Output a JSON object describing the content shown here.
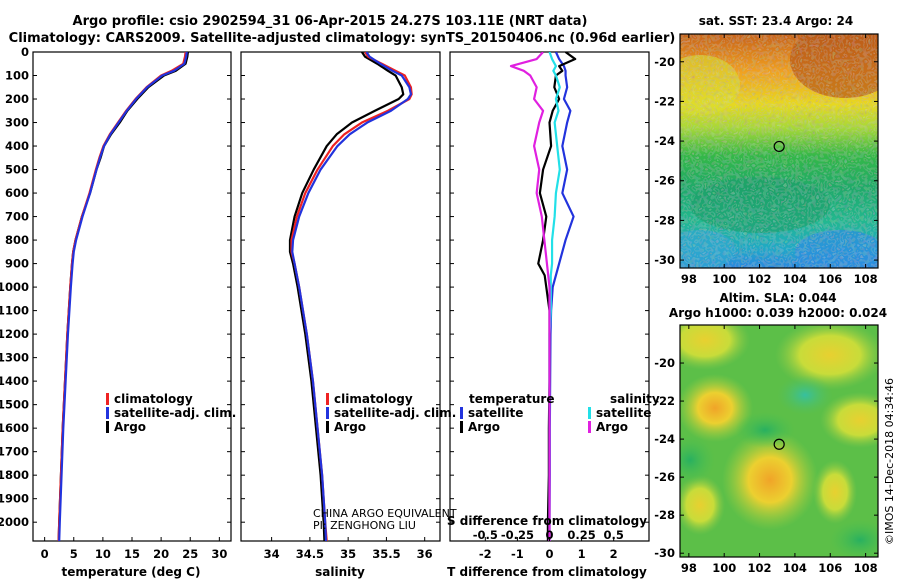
{
  "title_line1": "Argo profile: csio 2902594_31 06-Apr-2015 24.27S 103.11E (NRT data)",
  "title_line2": "Climatology: CARS2009. Satellite-adjusted climatology: synTS_20150406.nc (0.96d earlier)",
  "credit": "CHINA ARGO EQUIVALENT",
  "pi": "PI: ZENGHONG LIU",
  "timestamp": "©IMOS 14-Dec-2018 04:34:46",
  "colors": {
    "red": "#ee2222",
    "blue": "#2233dd",
    "black": "#000000",
    "cyan": "#22e0e8",
    "magenta": "#e020e0"
  },
  "chart_data": [
    {
      "type": "line",
      "id": "temperature",
      "xlabel": "temperature (deg C)",
      "ylabel": "",
      "xlim": [
        -2,
        32
      ],
      "ylim": [
        2080,
        0
      ],
      "xticks": [
        0,
        5,
        10,
        15,
        20,
        25,
        30
      ],
      "yticks": [
        0,
        100,
        200,
        300,
        400,
        500,
        600,
        700,
        800,
        900,
        1000,
        1100,
        1200,
        1300,
        1400,
        1500,
        1600,
        1700,
        1800,
        1900,
        2000
      ],
      "legend": [
        "climatology",
        "satellite-adj. clim.",
        "Argo"
      ],
      "depth": [
        0,
        20,
        50,
        80,
        100,
        150,
        200,
        250,
        300,
        350,
        400,
        450,
        500,
        600,
        700,
        800,
        850,
        900,
        1000,
        1200,
        1400,
        1600,
        1800,
        2000,
        2080
      ],
      "series": [
        {
          "name": "Argo",
          "color": "black",
          "values": [
            24.6,
            24.5,
            24.2,
            22.5,
            20.5,
            17.8,
            15.9,
            14.2,
            12.9,
            11.4,
            10.2,
            9.6,
            8.9,
            7.8,
            6.4,
            5.3,
            4.9,
            4.7,
            4.4,
            3.9,
            3.5,
            3.1,
            2.8,
            2.5,
            2.4
          ]
        },
        {
          "name": "climatology",
          "color": "red",
          "values": [
            24.2,
            24.1,
            23.8,
            21.8,
            20.0,
            17.5,
            15.6,
            14.0,
            12.6,
            11.2,
            10.1,
            9.4,
            8.8,
            7.7,
            6.4,
            5.3,
            4.9,
            4.7,
            4.4,
            3.9,
            3.5,
            3.1,
            2.8,
            2.5,
            2.4
          ]
        },
        {
          "name": "satellite-adj. clim.",
          "color": "blue",
          "values": [
            24.4,
            24.3,
            24.0,
            22.2,
            20.2,
            17.6,
            15.7,
            14.1,
            12.7,
            11.3,
            10.2,
            9.5,
            8.9,
            7.8,
            6.5,
            5.4,
            5.0,
            4.8,
            4.5,
            4.0,
            3.6,
            3.2,
            2.9,
            2.6,
            2.5
          ]
        }
      ]
    },
    {
      "type": "line",
      "id": "salinity",
      "xlabel": "salinity",
      "ylabel": "",
      "xlim": [
        33.6,
        36.2
      ],
      "ylim": [
        2080,
        0
      ],
      "xticks": [
        34,
        34.5,
        35,
        35.5,
        36
      ],
      "xtick_labels": [
        "34",
        "34.5",
        "35",
        "35.5",
        "36"
      ],
      "legend": [
        "climatology",
        "satellite-adj. clim.",
        "Argo"
      ],
      "depth": [
        0,
        20,
        50,
        80,
        100,
        150,
        180,
        200,
        250,
        300,
        350,
        400,
        500,
        600,
        700,
        800,
        850,
        900,
        1000,
        1200,
        1400,
        1600,
        1800,
        2000,
        2080
      ],
      "series": [
        {
          "name": "Argo",
          "color": "black",
          "values": [
            35.18,
            35.22,
            35.38,
            35.52,
            35.62,
            35.7,
            35.72,
            35.66,
            35.35,
            35.05,
            34.85,
            34.72,
            34.55,
            34.4,
            34.3,
            34.24,
            34.24,
            34.28,
            34.34,
            34.44,
            34.52,
            34.58,
            34.64,
            34.68,
            34.69
          ]
        },
        {
          "name": "climatology",
          "color": "red",
          "values": [
            35.22,
            35.26,
            35.44,
            35.62,
            35.74,
            35.82,
            35.83,
            35.8,
            35.52,
            35.18,
            34.95,
            34.8,
            34.6,
            34.44,
            34.33,
            34.26,
            34.26,
            34.3,
            34.36,
            34.46,
            34.54,
            34.6,
            34.66,
            34.7,
            34.72
          ]
        },
        {
          "name": "satellite-adj. clim.",
          "color": "blue",
          "values": [
            35.24,
            35.28,
            35.42,
            35.58,
            35.7,
            35.8,
            35.82,
            35.78,
            35.56,
            35.25,
            35.02,
            34.86,
            34.64,
            34.48,
            34.36,
            34.28,
            34.27,
            34.3,
            34.36,
            34.46,
            34.54,
            34.6,
            34.66,
            34.7,
            34.71
          ]
        }
      ]
    },
    {
      "type": "line",
      "id": "differences",
      "xlabel": "T difference from climatology",
      "xlabel_top": "S difference from climatology",
      "xlim": [
        -3.1,
        3.1
      ],
      "ylim": [
        2080,
        0
      ],
      "xticks": [
        -2,
        -1,
        0,
        1,
        2
      ],
      "xtick_labels": [
        "-2",
        "-1",
        "0",
        "1",
        "2"
      ],
      "s_ticks": [
        -0.5,
        -0.25,
        0,
        0.25,
        0.5
      ],
      "s_tick_labels": [
        "-0.5",
        "-0.25",
        "0",
        "0.25",
        "0.5"
      ],
      "s_per_t": 0.25,
      "legend_left_header": "temperature",
      "legend_right_header": "salinity",
      "legend_left": [
        "satellite",
        "Argo"
      ],
      "legend_right": [
        "satellite",
        "Argo"
      ],
      "depth": [
        0,
        30,
        60,
        80,
        100,
        150,
        200,
        250,
        300,
        400,
        500,
        600,
        700,
        800,
        900,
        950,
        1000,
        1100,
        1200,
        1400,
        1600,
        1800,
        2000,
        2080
      ],
      "series": [
        {
          "name": "T satellite",
          "color": "blue",
          "values": [
            0.2,
            0.3,
            0.45,
            0.5,
            0.5,
            0.55,
            0.45,
            0.65,
            0.55,
            0.4,
            0.55,
            0.4,
            0.75,
            0.5,
            0.3,
            0.2,
            0.1,
            0.05,
            0.03,
            0.02,
            0.01,
            0.01,
            0.0,
            0.0
          ]
        },
        {
          "name": "T Argo",
          "color": "black",
          "values": [
            0.5,
            0.8,
            0.3,
            0.4,
            0.2,
            0.15,
            0.3,
            0.1,
            0.0,
            0.05,
            -0.2,
            -0.3,
            -0.1,
            -0.2,
            -0.35,
            -0.15,
            -0.1,
            0.0,
            0.0,
            0.0,
            -0.02,
            -0.02,
            -0.05,
            -0.05
          ]
        },
        {
          "name": "S satellite",
          "color": "cyan",
          "values": [
            0.0,
            0.02,
            0.05,
            0.03,
            0.05,
            0.08,
            0.05,
            0.07,
            0.04,
            0.06,
            0.08,
            0.05,
            0.04,
            0.02,
            0.02,
            0.01,
            0.01,
            0.01,
            0.0,
            0.0,
            0.0,
            0.0,
            0.0,
            0.0
          ]
        },
        {
          "name": "S Argo",
          "color": "magenta",
          "values": [
            -0.05,
            -0.1,
            -0.3,
            -0.2,
            -0.15,
            -0.1,
            -0.12,
            -0.05,
            -0.08,
            -0.12,
            -0.08,
            -0.1,
            -0.06,
            -0.04,
            -0.02,
            -0.01,
            0.0,
            0.0,
            0.0,
            0.0,
            0.0,
            0.0,
            0.0,
            0.0
          ]
        }
      ]
    },
    {
      "type": "heatmap",
      "id": "sst_map",
      "title": "sat. SST: 23.4 Argo: 24",
      "xlim": [
        97.5,
        108.7
      ],
      "ylim": [
        -30.4,
        -18.6
      ],
      "xticks": [
        98,
        100,
        102,
        104,
        106,
        108
      ],
      "yticks": [
        -20,
        -22,
        -24,
        -26,
        -28,
        -30
      ],
      "marker": {
        "lon": 103.11,
        "lat": -24.27
      }
    },
    {
      "type": "heatmap",
      "id": "sla_map",
      "title": "Altim. SLA: 0.044",
      "subtitle": "Argo h1000: 0.039 h2000: 0.024",
      "xlim": [
        97.5,
        108.7
      ],
      "ylim": [
        -30.2,
        -18.0
      ],
      "xticks": [
        98,
        100,
        102,
        104,
        106,
        108
      ],
      "yticks": [
        -20,
        -22,
        -24,
        -26,
        -28,
        -30
      ],
      "marker": {
        "lon": 103.11,
        "lat": -24.27
      }
    }
  ]
}
